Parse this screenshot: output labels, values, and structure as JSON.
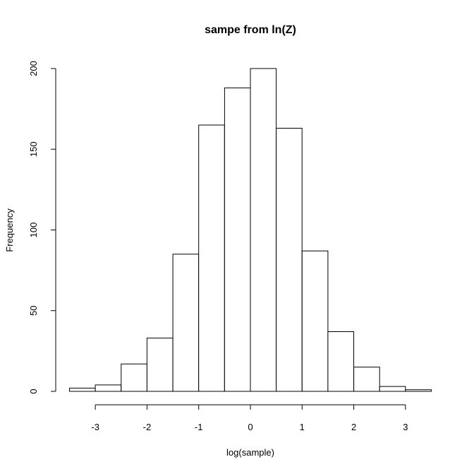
{
  "chart_data": {
    "type": "bar",
    "title": "sampe from ln(Z)",
    "xlabel": "log(sample)",
    "ylabel": "Frequency",
    "bin_edges": [
      -3.5,
      -3.0,
      -2.5,
      -2.0,
      -1.5,
      -1.0,
      -0.5,
      0.0,
      0.5,
      1.0,
      1.5,
      2.0,
      2.5,
      3.0,
      3.5
    ],
    "values": [
      2,
      4,
      17,
      33,
      85,
      165,
      188,
      200,
      163,
      87,
      37,
      15,
      3,
      1
    ],
    "x_ticks": [
      -3,
      -2,
      -1,
      0,
      1,
      2,
      3
    ],
    "x_tick_labels": [
      "-3",
      "-2",
      "-1",
      "0",
      "1",
      "2",
      "3"
    ],
    "y_ticks": [
      0,
      50,
      100,
      150,
      200
    ],
    "y_tick_labels": [
      "0",
      "50",
      "100",
      "150",
      "200"
    ],
    "xlim": [
      -3.5,
      3.5
    ],
    "ylim": [
      0,
      200
    ],
    "grid": false,
    "legend": "none",
    "colors": {
      "bar_fill": "#ffffff",
      "bar_stroke": "#000000"
    }
  }
}
